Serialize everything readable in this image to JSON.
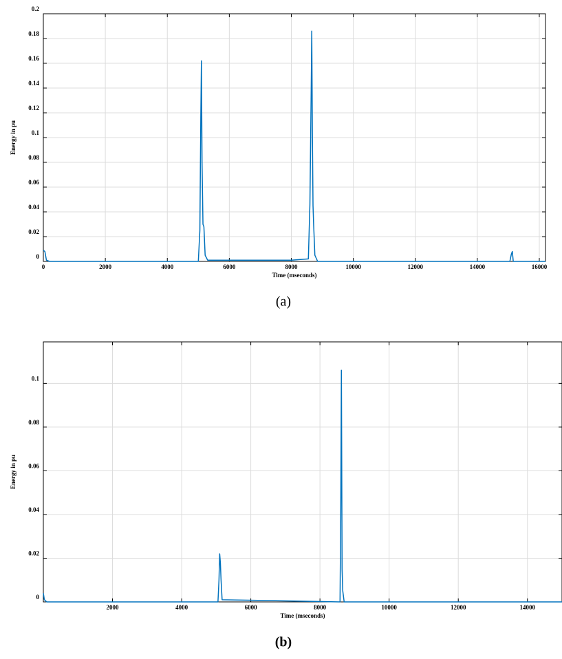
{
  "chart_data": [
    {
      "type": "line",
      "xlabel": "Time (mseconds)",
      "ylabel": "Energy in pu",
      "caption": "(a)",
      "color": "#0072bd",
      "grid": true,
      "xlim": [
        0,
        16200
      ],
      "ylim": [
        0,
        0.2
      ],
      "xticks": [
        0,
        2000,
        4000,
        6000,
        8000,
        10000,
        12000,
        14000,
        16000
      ],
      "yticks": [
        0,
        0.02,
        0.04,
        0.06,
        0.08,
        0.1,
        0.12,
        0.14,
        0.16,
        0.18,
        0.2
      ],
      "x": [
        0,
        50,
        100,
        200,
        5000,
        5050,
        5080,
        5100,
        5120,
        5150,
        5180,
        5220,
        5300,
        6000,
        7000,
        8000,
        8550,
        8600,
        8640,
        8660,
        8680,
        8700,
        8720,
        8760,
        8850,
        15050,
        15100,
        15130,
        15160,
        16200
      ],
      "values": [
        0.009,
        0.008,
        0.001,
        0,
        0,
        0.025,
        0.116,
        0.162,
        0.08,
        0.03,
        0.028,
        0.005,
        0.001,
        0.001,
        0.001,
        0.001,
        0.002,
        0.046,
        0.135,
        0.186,
        0.103,
        0.045,
        0.03,
        0.005,
        0,
        0,
        0.006,
        0.008,
        0,
        0
      ]
    },
    {
      "type": "line",
      "xlabel": "Time (mseconds)",
      "ylabel": "Energy in pu",
      "caption": "(b)",
      "color": "#0072bd",
      "grid": true,
      "xlim": [
        0,
        15000
      ],
      "ylim": [
        0,
        0.119
      ],
      "xticks": [
        2000,
        4000,
        6000,
        8000,
        10000,
        12000,
        14000
      ],
      "yticks": [
        0,
        0.02,
        0.04,
        0.06,
        0.08,
        0.1
      ],
      "x": [
        0,
        30,
        100,
        5050,
        5080,
        5100,
        5120,
        5140,
        5170,
        8580,
        8600,
        8620,
        8640,
        8660,
        8700,
        15000
      ],
      "values": [
        0.004,
        0.001,
        0,
        0,
        0.01,
        0.022,
        0.018,
        0.01,
        0.001,
        0,
        0.038,
        0.106,
        0.015,
        0.005,
        0,
        0
      ]
    }
  ]
}
